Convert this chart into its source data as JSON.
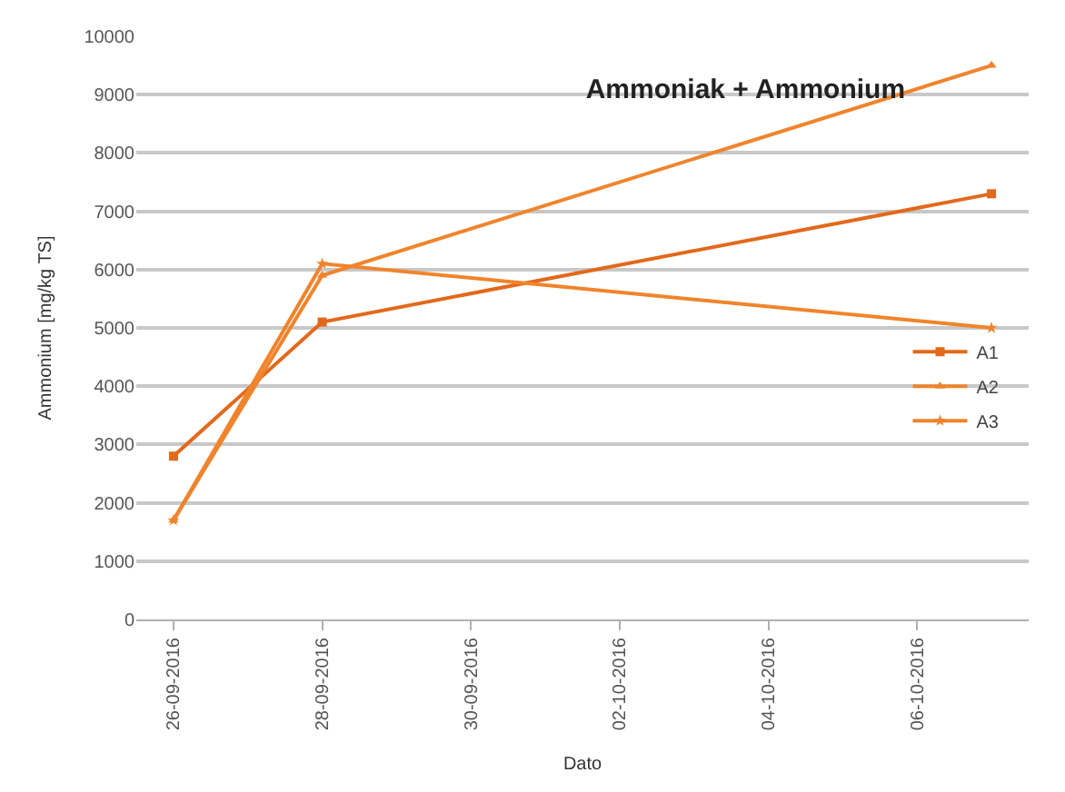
{
  "chart_data": {
    "type": "line",
    "title": "Ammoniak + Ammonium",
    "xlabel": "Dato",
    "ylabel": "Ammonium [mg/kg TS]",
    "x": [
      "2016-09-26",
      "2016-09-28",
      "2016-10-07"
    ],
    "series": [
      {
        "name": "A1",
        "color": "#e2691c",
        "marker": "square",
        "values": [
          2800,
          5100,
          7300
        ]
      },
      {
        "name": "A2",
        "color": "#f0842c",
        "marker": "triangle",
        "values": [
          1700,
          5900,
          9500
        ]
      },
      {
        "name": "A3",
        "color": "#f0842c",
        "marker": "star",
        "values": [
          1700,
          6100,
          5000
        ]
      }
    ],
    "xlim": [
      "2016-09-25T12:00",
      "2016-10-07T12:00"
    ],
    "xticks": [
      {
        "value": "2016-09-26",
        "label": "26-09-2016"
      },
      {
        "value": "2016-09-28",
        "label": "28-09-2016"
      },
      {
        "value": "2016-09-30",
        "label": "30-09-2016"
      },
      {
        "value": "2016-10-02",
        "label": "02-10-2016"
      },
      {
        "value": "2016-10-04",
        "label": "04-10-2016"
      },
      {
        "value": "2016-10-06",
        "label": "06-10-2016"
      }
    ],
    "ylim": [
      0,
      10000
    ],
    "yticks": [
      0,
      1000,
      2000,
      3000,
      4000,
      5000,
      6000,
      7000,
      8000,
      9000,
      10000
    ],
    "grid": "y",
    "legend": "right",
    "line_style": "solid"
  }
}
